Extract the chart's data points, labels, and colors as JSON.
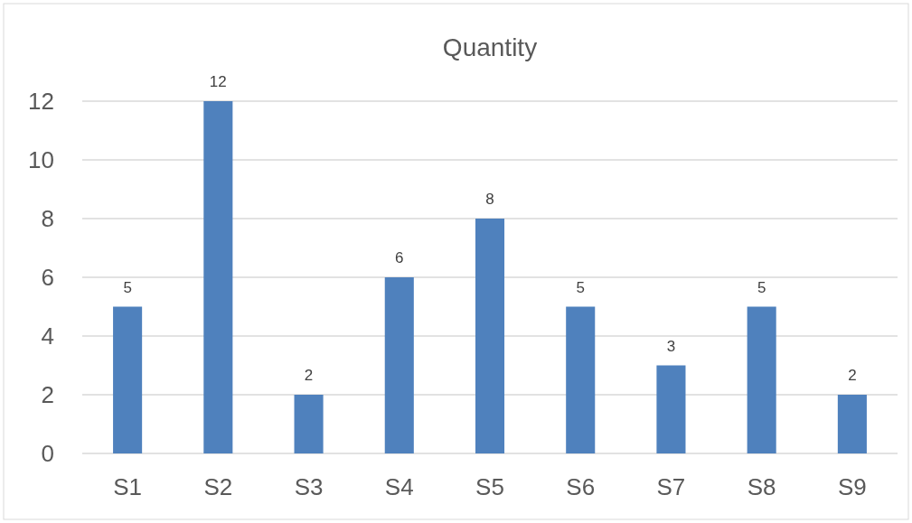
{
  "chart_data": {
    "type": "bar",
    "title": "Quantity",
    "categories": [
      "S1",
      "S2",
      "S3",
      "S4",
      "S5",
      "S6",
      "S7",
      "S8",
      "S9"
    ],
    "values": [
      5,
      12,
      2,
      6,
      8,
      5,
      3,
      5,
      2
    ],
    "color": "#4f81bd",
    "ylim": [
      0,
      12
    ],
    "yticks": [
      0,
      2,
      4,
      6,
      8,
      10,
      12
    ],
    "grid": "y",
    "data_labels": true
  }
}
